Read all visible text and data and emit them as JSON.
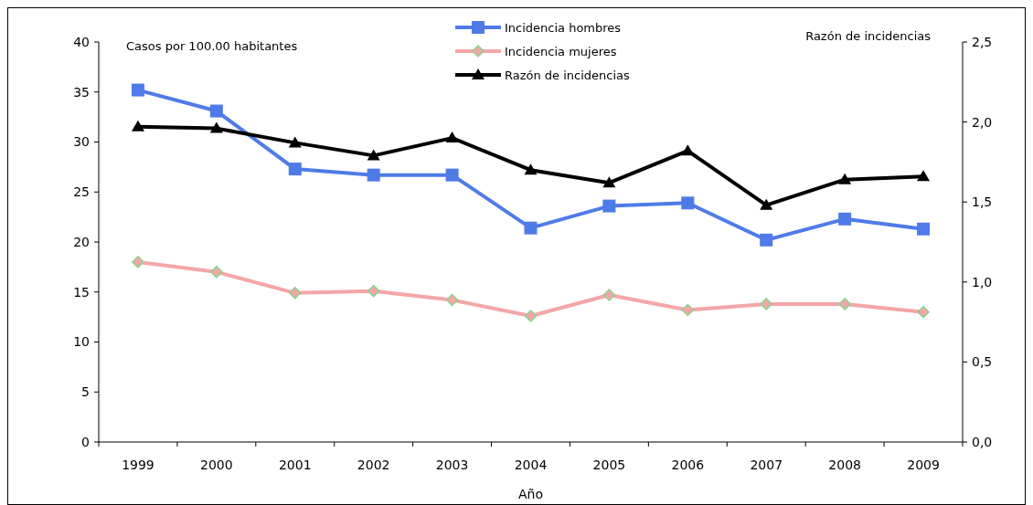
{
  "chart_data": {
    "type": "line",
    "xlabel": "Año",
    "ylabel": "Casos por 100.00 habitantes",
    "y2label": "Razón de incidencias",
    "categories": [
      "1999",
      "2000",
      "2001",
      "2002",
      "2003",
      "2004",
      "2005",
      "2006",
      "2007",
      "2008",
      "2009"
    ],
    "ylim": [
      0,
      40
    ],
    "yticks": [
      0,
      5,
      10,
      15,
      20,
      25,
      30,
      35,
      40
    ],
    "y2lim": [
      0,
      2.5
    ],
    "y2ticks": [
      {
        "value": 0,
        "label": "0,0"
      },
      {
        "value": 0.5,
        "label": "0,5"
      },
      {
        "value": 1,
        "label": "1,0"
      },
      {
        "value": 1.5,
        "label": "1,5"
      },
      {
        "value": 2,
        "label": "2,0"
      },
      {
        "value": 2.5,
        "label": "2,5"
      }
    ],
    "legend": "top",
    "grid": false,
    "line_style": "solid",
    "series": [
      {
        "name": "Incidencia hombres",
        "color": "#4f7be8",
        "marker": "square",
        "values": [
          35.2,
          33.1,
          27.3,
          26.7,
          26.7,
          21.4,
          23.6,
          23.9,
          20.2,
          22.3,
          21.3
        ]
      },
      {
        "name": "Incidencia mujeres",
        "color": "#f4a6a6",
        "marker": "diamond",
        "values": [
          18.0,
          17.0,
          14.9,
          15.1,
          14.2,
          12.6,
          14.7,
          13.2,
          13.8,
          13.8,
          13.0
        ]
      },
      {
        "name": "Razón de incidencias",
        "color": "#000000",
        "marker": "triangle",
        "axis": "y2",
        "values": [
          1.97,
          1.96,
          1.87,
          1.79,
          1.9,
          1.7,
          1.62,
          1.82,
          1.48,
          1.64,
          1.66
        ]
      }
    ]
  }
}
